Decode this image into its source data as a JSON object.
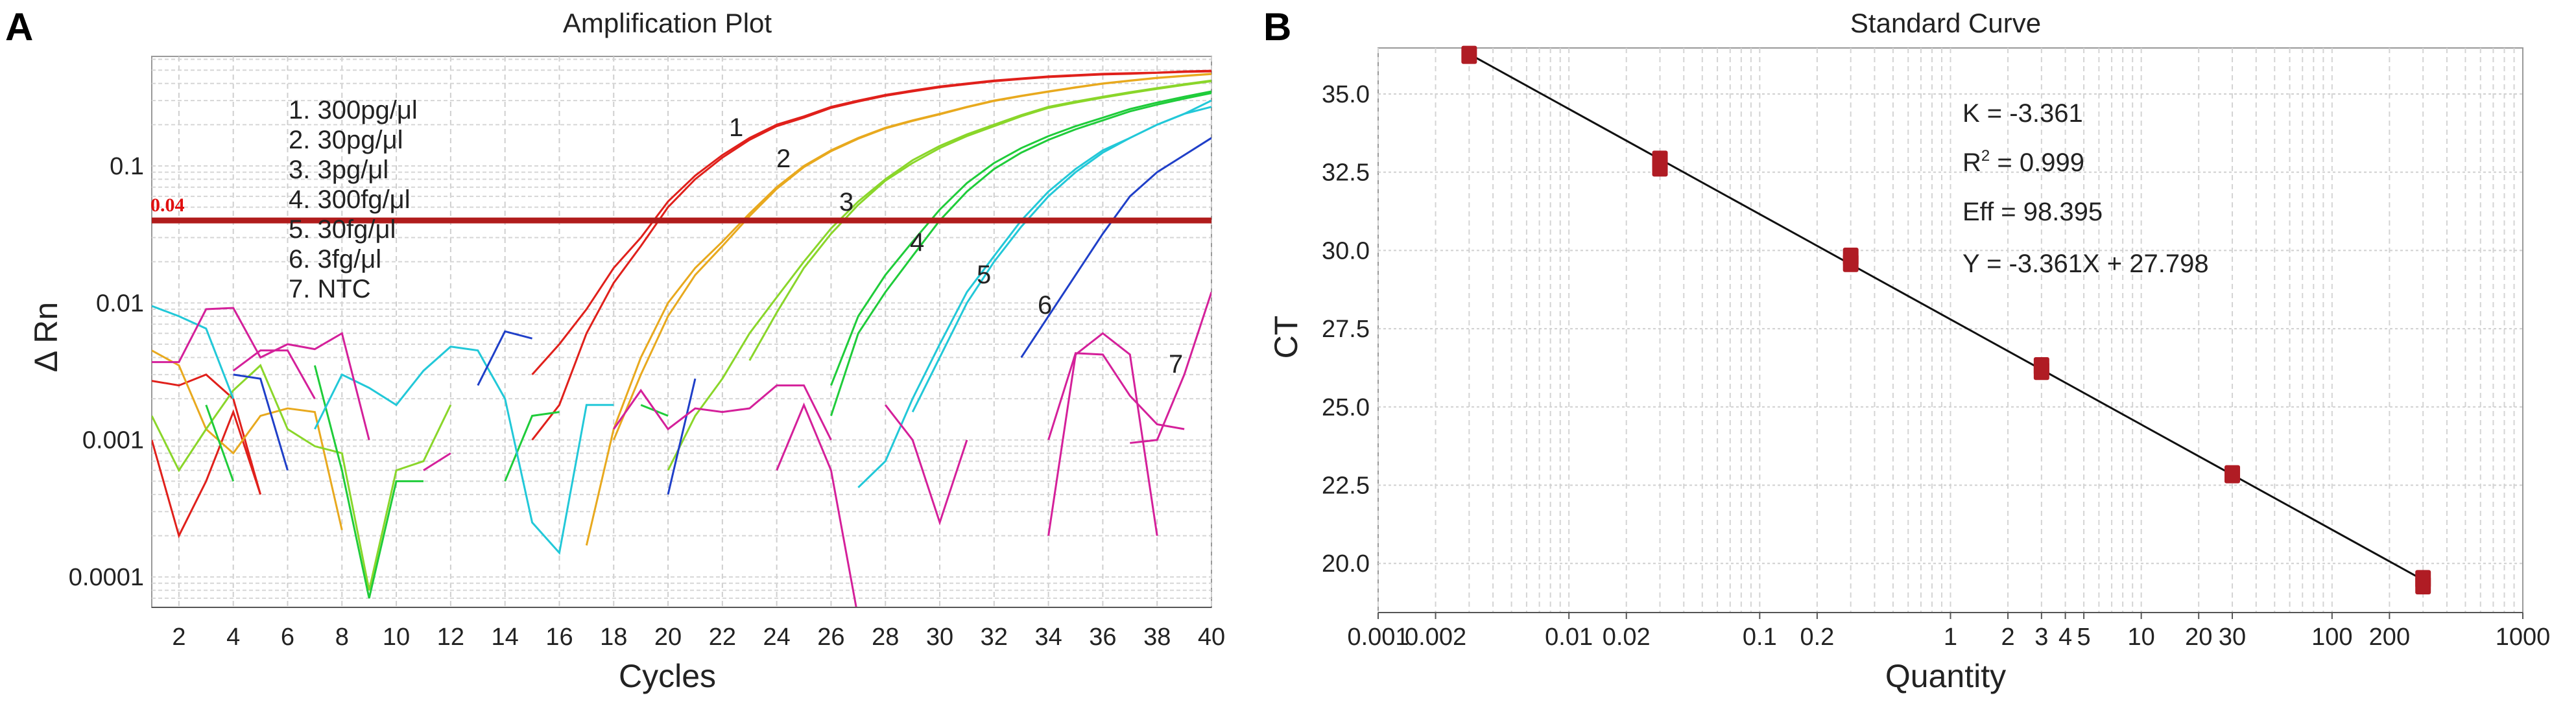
{
  "chart_data": [
    {
      "type": "line",
      "panel_label": "A",
      "title": "Amplification Plot",
      "xlabel": "Cycles",
      "ylabel": "Δ Rn",
      "yscale": "log",
      "xlim": [
        1,
        40
      ],
      "ylim": [
        6e-05,
        0.63
      ],
      "grid": true,
      "x_ticks": [
        2,
        4,
        6,
        8,
        10,
        12,
        14,
        16,
        18,
        20,
        22,
        24,
        26,
        28,
        30,
        32,
        34,
        36,
        38,
        40
      ],
      "y_ticks": [
        {
          "value": 0.1,
          "label": "0.1"
        },
        {
          "value": 0.01,
          "label": "0.01"
        },
        {
          "value": 0.001,
          "label": "0.001"
        },
        {
          "value": 0.0001,
          "label": "0.0001"
        }
      ],
      "threshold": {
        "value": 0.04,
        "label": "0.04",
        "color": "#b01c1c"
      },
      "legend": [
        "1. 300pg/μl",
        "2. 30pg/μl",
        "3. 3pg/μl",
        "4. 300fg/μl",
        "5. 30fg/μl",
        "6. 3fg/μl",
        "7. NTC"
      ],
      "curve_labels": [
        "1",
        "2",
        "3",
        "4",
        "5",
        "6",
        "7"
      ],
      "series": [
        {
          "name": "1a",
          "color": "#e0201b",
          "start": 1,
          "values": [
            0.0027,
            0.0025,
            0.003,
            0.002,
            0.0004,
            null,
            null,
            null,
            null,
            null,
            null,
            null,
            null,
            null,
            0.003,
            0.005,
            0.009,
            0.018,
            0.03,
            0.055,
            0.085,
            0.12,
            0.16,
            0.2,
            0.23,
            0.27,
            0.3,
            0.33,
            0.355,
            0.38,
            0.4,
            0.42,
            0.435,
            0.45,
            0.46,
            0.47,
            0.475,
            0.48,
            0.49,
            0.495
          ]
        },
        {
          "name": "1b",
          "color": "#e0201b",
          "start": 1,
          "values": [
            0.001,
            0.0002,
            0.0005,
            0.0016,
            0.0004,
            null,
            null,
            null,
            null,
            null,
            null,
            null,
            null,
            null,
            0.001,
            0.0018,
            0.006,
            0.014,
            0.026,
            0.05,
            0.08,
            0.115,
            0.155,
            0.195,
            0.225,
            0.265,
            0.295,
            0.325,
            0.35,
            0.375,
            0.395,
            0.415,
            0.43,
            0.445,
            0.455,
            0.465,
            0.47,
            0.478,
            0.485,
            0.49
          ]
        },
        {
          "name": "2a",
          "color": "#e8a91e",
          "start": 1,
          "values": [
            0.0045,
            0.0035,
            0.0012,
            0.0008,
            0.0015,
            0.0017,
            0.0016,
            0.00022,
            null,
            null,
            null,
            null,
            null,
            null,
            null,
            null,
            0.00017,
            0.0012,
            0.004,
            0.01,
            0.018,
            0.028,
            0.045,
            0.07,
            0.1,
            0.13,
            0.16,
            0.19,
            0.215,
            0.24,
            0.27,
            0.3,
            0.325,
            0.35,
            0.375,
            0.4,
            0.42,
            0.44,
            0.455,
            0.47
          ]
        },
        {
          "name": "2b",
          "color": "#e8a91e",
          "start": 18,
          "values": [
            0.001,
            0.003,
            0.008,
            0.016,
            0.026,
            0.043,
            0.068,
            0.098,
            0.128,
            0.158,
            0.188,
            0.213,
            0.238,
            0.268,
            0.298,
            0.323,
            0.348,
            0.373,
            0.398,
            0.418,
            0.438,
            0.453,
            0.468
          ]
        },
        {
          "name": "3a",
          "color": "#8ad62a",
          "start": 1,
          "values": [
            0.0015,
            0.0006,
            0.0012,
            0.0023,
            0.0035,
            0.0012,
            0.0009,
            0.0008,
            8e-05,
            0.0006,
            0.0007,
            0.0018,
            null,
            null,
            null,
            null,
            null,
            null,
            null,
            0.0006,
            0.0015,
            0.0028,
            0.006,
            0.011,
            0.02,
            0.035,
            0.055,
            0.08,
            0.11,
            0.14,
            0.17,
            0.2,
            0.235,
            0.27,
            0.295,
            0.32,
            0.345,
            0.37,
            0.395,
            0.42
          ]
        },
        {
          "name": "3b",
          "color": "#8ad62a",
          "start": 23,
          "values": [
            0.0038,
            0.0085,
            0.018,
            0.032,
            0.052,
            0.078,
            0.105,
            0.135,
            0.165,
            0.195,
            0.23,
            0.265,
            0.29,
            0.315,
            0.34,
            0.365,
            0.39,
            0.415
          ]
        },
        {
          "name": "4a",
          "color": "#1fcc3a",
          "start": 3,
          "values": [
            0.0018,
            0.0005,
            null,
            null,
            0.0035,
            0.0006,
            7e-05,
            0.0005,
            0.0005,
            null,
            null,
            0.0005,
            0.0015,
            0.0016,
            null,
            null,
            0.0018,
            0.0015,
            null,
            null,
            null,
            null,
            null,
            0.0025,
            0.008,
            0.016,
            0.028,
            0.048,
            0.075,
            0.105,
            0.135,
            0.165,
            0.195,
            0.225,
            0.26,
            0.29,
            0.32,
            0.35
          ]
        },
        {
          "name": "4b",
          "color": "#1fcc3a",
          "start": 26,
          "values": [
            0.0015,
            0.006,
            0.012,
            0.022,
            0.04,
            0.065,
            0.095,
            0.125,
            0.155,
            0.185,
            0.215,
            0.25,
            0.28,
            0.31,
            0.34
          ]
        },
        {
          "name": "5a",
          "color": "#22c8d8",
          "start": 1,
          "values": [
            0.0095,
            0.008,
            0.0065,
            0.002,
            null,
            null,
            0.0012,
            0.003,
            0.0024,
            0.0018,
            0.0032,
            0.0048,
            0.0045,
            0.002,
            0.00025,
            0.00015,
            0.0018,
            0.0018,
            null,
            null,
            null,
            null,
            null,
            null,
            null,
            null,
            0.00045,
            0.0007,
            0.002,
            0.005,
            0.012,
            0.022,
            0.04,
            0.065,
            0.095,
            0.13,
            0.16,
            0.2,
            0.24,
            0.27
          ]
        },
        {
          "name": "5b",
          "color": "#22c8d8",
          "start": 29,
          "values": [
            0.0016,
            0.004,
            0.01,
            0.02,
            0.036,
            0.06,
            0.09,
            0.125,
            0.16,
            0.2,
            0.24,
            0.3
          ]
        },
        {
          "name": "6",
          "color": "#1f3fc8",
          "start": 4,
          "values": [
            0.003,
            0.0028,
            0.0006,
            null,
            null,
            null,
            null,
            null,
            null,
            0.0025,
            0.0062,
            0.0055,
            null,
            null,
            null,
            null,
            0.0004,
            0.0028,
            null,
            null,
            null,
            null,
            null,
            null,
            null,
            null,
            null,
            null,
            null,
            0.004,
            0.008,
            0.016,
            0.032,
            0.06,
            0.09,
            0.12,
            0.16
          ]
        },
        {
          "name": "7a",
          "color": "#d4209a",
          "start": 1,
          "values": [
            0.0037,
            0.0037,
            0.009,
            0.0092,
            0.004,
            0.005,
            0.0046,
            0.006,
            0.001,
            null,
            0.0006,
            0.0008,
            null,
            null,
            null,
            null,
            null,
            0.0012,
            0.0023,
            0.0012,
            0.0017,
            0.0016,
            0.0017,
            0.0025,
            0.0025,
            0.001,
            null,
            0.0018,
            0.001,
            0.00025,
            0.001,
            null,
            null,
            0.001,
            0.0043,
            0.0042,
            0.0021,
            0.0013,
            0.0012,
            null
          ]
        },
        {
          "name": "7b",
          "color": "#d4209a",
          "start": 4,
          "values": [
            0.0032,
            0.0045,
            0.0045,
            0.002,
            null,
            null,
            null,
            null,
            null,
            null,
            null,
            null,
            null,
            null,
            null,
            null,
            null,
            null,
            null,
            null,
            0.0006,
            0.0018,
            0.0006,
            5e-05,
            null,
            null,
            null,
            null,
            null,
            null,
            0.0002,
            0.0042,
            0.006,
            0.0042,
            0.0002,
            null,
            null
          ]
        },
        {
          "name": "7c",
          "color": "#d4209a",
          "start": 37,
          "values": [
            0.00095,
            0.001,
            0.003,
            0.012
          ]
        }
      ]
    },
    {
      "type": "scatter",
      "panel_label": "B",
      "title": "Standard Curve",
      "xlabel": "Quantity",
      "ylabel": "CT",
      "xscale": "log",
      "xlim": [
        0.001,
        1000
      ],
      "ylim": [
        18.43,
        36.47
      ],
      "grid": true,
      "x_ticks": [
        {
          "value": 0.001,
          "label": "0.001"
        },
        {
          "value": 0.002,
          "label": "0.002"
        },
        {
          "value": 0.01,
          "label": "0.01"
        },
        {
          "value": 0.02,
          "label": "0.02"
        },
        {
          "value": 0.1,
          "label": "0.1"
        },
        {
          "value": 0.2,
          "label": "0.2"
        },
        {
          "value": 1,
          "label": "1"
        },
        {
          "value": 2,
          "label": "2"
        },
        {
          "value": 3,
          "label": "3"
        },
        {
          "value": 4,
          "label": "4"
        },
        {
          "value": 5,
          "label": "5"
        },
        {
          "value": 10,
          "label": "10"
        },
        {
          "value": 20,
          "label": "20"
        },
        {
          "value": 30,
          "label": "30"
        },
        {
          "value": 100,
          "label": "100"
        },
        {
          "value": 200,
          "label": "200"
        },
        {
          "value": 1000,
          "label": "1000"
        }
      ],
      "y_ticks": [
        {
          "value": 20,
          "label": "20.0"
        },
        {
          "value": 22.5,
          "label": "22.5"
        },
        {
          "value": 25,
          "label": "25.0"
        },
        {
          "value": 27.5,
          "label": "27.5"
        },
        {
          "value": 30,
          "label": "30.0"
        },
        {
          "value": 32.5,
          "label": "32.5"
        },
        {
          "value": 35,
          "label": "35.0"
        }
      ],
      "marker_color": "#b01c24",
      "points": [
        {
          "x": 0.003,
          "y": 36.25
        },
        {
          "x": 0.03,
          "y": 32.65
        },
        {
          "x": 0.03,
          "y": 32.9
        },
        {
          "x": 0.3,
          "y": 29.6
        },
        {
          "x": 0.3,
          "y": 29.8
        },
        {
          "x": 3,
          "y": 26.15
        },
        {
          "x": 3,
          "y": 26.3
        },
        {
          "x": 30,
          "y": 22.85
        },
        {
          "x": 300,
          "y": 19.3
        },
        {
          "x": 300,
          "y": 19.5
        }
      ],
      "fit": {
        "slope": -3.361,
        "intercept": 27.798
      },
      "annotations": {
        "k": "K = -3.361",
        "r2_prefix": "R",
        "r2_sup": "2",
        "r2_value": " = 0.999",
        "eff": "Eff = 98.395",
        "equation": "Y = -3.361X + 27.798"
      }
    }
  ]
}
